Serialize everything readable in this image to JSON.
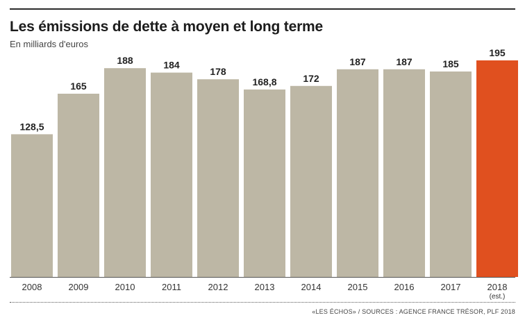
{
  "title": "Les émissions de dette à moyen et long terme",
  "subtitle": "En milliards d'euros",
  "source": "«LES ÉCHOS» / SOURCES : AGENCE FRANCE TRÉSOR, PLF 2018",
  "colors": {
    "bar": "#bdb7a5",
    "highlight": "#e0501f",
    "baseline": "#555555",
    "text": "#222222"
  },
  "chart_data": {
    "type": "bar",
    "title": "Les émissions de dette à moyen et long terme",
    "subtitle": "En milliards d'euros",
    "xlabel": "",
    "ylabel": "",
    "categories": [
      "2008",
      "2009",
      "2010",
      "2011",
      "2012",
      "2013",
      "2014",
      "2015",
      "2016",
      "2017",
      "2018"
    ],
    "category_notes": [
      "",
      "",
      "",
      "",
      "",
      "",
      "",
      "",
      "",
      "",
      "(est.)"
    ],
    "values": [
      128.5,
      165,
      188,
      184,
      178,
      168.8,
      172,
      187,
      187,
      185,
      195
    ],
    "value_labels": [
      "128,5",
      "165",
      "188",
      "184",
      "178",
      "168,8",
      "172",
      "187",
      "187",
      "185",
      "195"
    ],
    "highlight_index": 10,
    "ylim": [
      0,
      195
    ],
    "grid": false,
    "legend": "none"
  }
}
